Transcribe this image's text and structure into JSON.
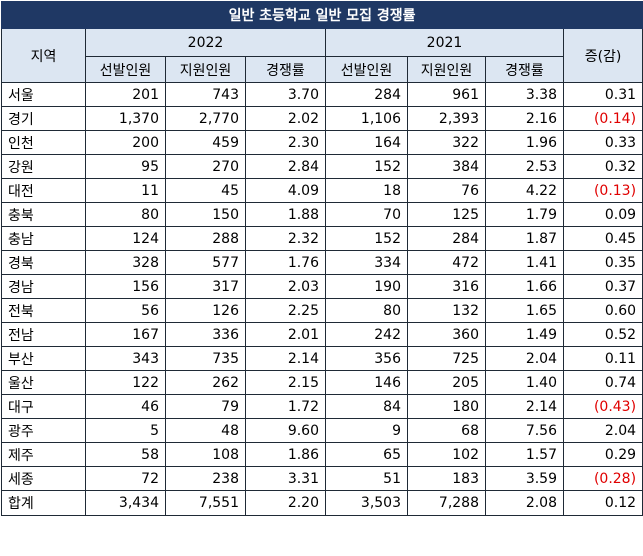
{
  "title": "일반 초등학교 일반 모집 경쟁률",
  "headers": {
    "region": "지역",
    "year_a": "2022",
    "year_b": "2021",
    "change": "증(감)",
    "sub": [
      "선발인원",
      "지원인원",
      "경쟁률",
      "선발인원",
      "지원인원",
      "경쟁률"
    ]
  },
  "rows": [
    {
      "region": "서울",
      "c": [
        "201",
        "743",
        "3.70",
        "284",
        "961",
        "3.38"
      ],
      "change": "0.31",
      "neg": false
    },
    {
      "region": "경기",
      "c": [
        "1,370",
        "2,770",
        "2.02",
        "1,106",
        "2,393",
        "2.16"
      ],
      "change": "(0.14)",
      "neg": true
    },
    {
      "region": "인천",
      "c": [
        "200",
        "459",
        "2.30",
        "164",
        "322",
        "1.96"
      ],
      "change": "0.33",
      "neg": false
    },
    {
      "region": "강원",
      "c": [
        "95",
        "270",
        "2.84",
        "152",
        "384",
        "2.53"
      ],
      "change": "0.32",
      "neg": false
    },
    {
      "region": "대전",
      "c": [
        "11",
        "45",
        "4.09",
        "18",
        "76",
        "4.22"
      ],
      "change": "(0.13)",
      "neg": true
    },
    {
      "region": "충북",
      "c": [
        "80",
        "150",
        "1.88",
        "70",
        "125",
        "1.79"
      ],
      "change": "0.09",
      "neg": false
    },
    {
      "region": "충남",
      "c": [
        "124",
        "288",
        "2.32",
        "152",
        "284",
        "1.87"
      ],
      "change": "0.45",
      "neg": false
    },
    {
      "region": "경북",
      "c": [
        "328",
        "577",
        "1.76",
        "334",
        "472",
        "1.41"
      ],
      "change": "0.35",
      "neg": false
    },
    {
      "region": "경남",
      "c": [
        "156",
        "317",
        "2.03",
        "190",
        "316",
        "1.66"
      ],
      "change": "0.37",
      "neg": false
    },
    {
      "region": "전북",
      "c": [
        "56",
        "126",
        "2.25",
        "80",
        "132",
        "1.65"
      ],
      "change": "0.60",
      "neg": false
    },
    {
      "region": "전남",
      "c": [
        "167",
        "336",
        "2.01",
        "242",
        "360",
        "1.49"
      ],
      "change": "0.52",
      "neg": false
    },
    {
      "region": "부산",
      "c": [
        "343",
        "735",
        "2.14",
        "356",
        "725",
        "2.04"
      ],
      "change": "0.11",
      "neg": false
    },
    {
      "region": "울산",
      "c": [
        "122",
        "262",
        "2.15",
        "146",
        "205",
        "1.40"
      ],
      "change": "0.74",
      "neg": false
    },
    {
      "region": "대구",
      "c": [
        "46",
        "79",
        "1.72",
        "84",
        "180",
        "2.14"
      ],
      "change": "(0.43)",
      "neg": true
    },
    {
      "region": "광주",
      "c": [
        "5",
        "48",
        "9.60",
        "9",
        "68",
        "7.56"
      ],
      "change": "2.04",
      "neg": false
    },
    {
      "region": "제주",
      "c": [
        "58",
        "108",
        "1.86",
        "65",
        "102",
        "1.57"
      ],
      "change": "0.29",
      "neg": false
    },
    {
      "region": "세종",
      "c": [
        "72",
        "238",
        "3.31",
        "51",
        "183",
        "3.59"
      ],
      "change": "(0.28)",
      "neg": true
    },
    {
      "region": "합계",
      "c": [
        "3,434",
        "7,551",
        "2.20",
        "3,503",
        "7,288",
        "2.08"
      ],
      "change": "0.12",
      "neg": false
    }
  ],
  "colors": {
    "title_bg": "#1f3864",
    "header_bg": "#dce6f2",
    "negative_text": "#e00000"
  }
}
